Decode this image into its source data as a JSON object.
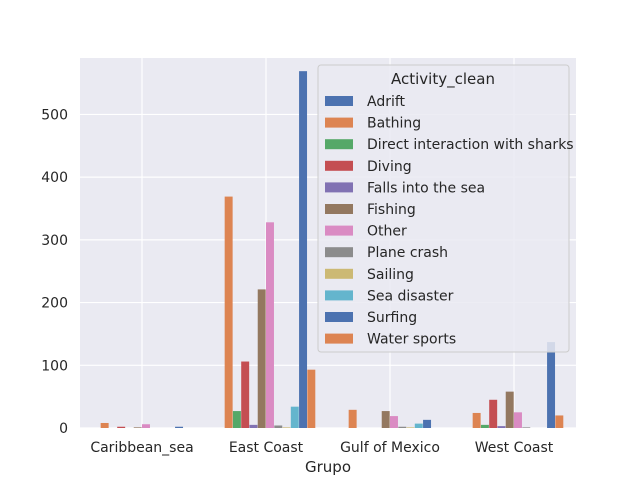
{
  "chart_data": {
    "type": "bar",
    "xlabel": "Grupo",
    "ylabel": "",
    "ylim": [
      0,
      590
    ],
    "yticks": [
      0,
      100,
      200,
      300,
      400,
      500
    ],
    "grid": true,
    "legend_title": "Activity_clean",
    "legend_position": "top-right",
    "categories": [
      "Caribbean_sea",
      "East Coast",
      "Gulf of Mexico",
      "West Coast"
    ],
    "series": [
      {
        "name": "Adrift",
        "color": "#4c72b0",
        "values": [
          0,
          0,
          0,
          0
        ]
      },
      {
        "name": "Bathing",
        "color": "#dd8452",
        "values": [
          8,
          369,
          29,
          24
        ]
      },
      {
        "name": "Direct interaction with sharks",
        "color": "#55a868",
        "values": [
          0,
          27,
          0,
          5
        ]
      },
      {
        "name": "Diving",
        "color": "#c44e52",
        "values": [
          2,
          106,
          0,
          45
        ]
      },
      {
        "name": "Falls into the sea",
        "color": "#8172b3",
        "values": [
          0,
          5,
          0,
          3
        ]
      },
      {
        "name": "Fishing",
        "color": "#937860",
        "values": [
          1,
          221,
          27,
          58
        ]
      },
      {
        "name": "Other",
        "color": "#da8bc3",
        "values": [
          6,
          328,
          19,
          25
        ]
      },
      {
        "name": "Plane crash",
        "color": "#8c8c8c",
        "values": [
          0,
          4,
          2,
          1
        ]
      },
      {
        "name": "Sailing",
        "color": "#ccb974",
        "values": [
          0,
          1,
          1,
          0
        ]
      },
      {
        "name": "Sea disaster",
        "color": "#64b5cd",
        "values": [
          0,
          34,
          7,
          0
        ]
      },
      {
        "name": "Surfing",
        "color": "#4c72b0",
        "values": [
          2,
          569,
          13,
          137
        ]
      },
      {
        "name": "Water sports",
        "color": "#dd8452",
        "values": [
          0,
          93,
          0,
          20
        ]
      }
    ]
  }
}
